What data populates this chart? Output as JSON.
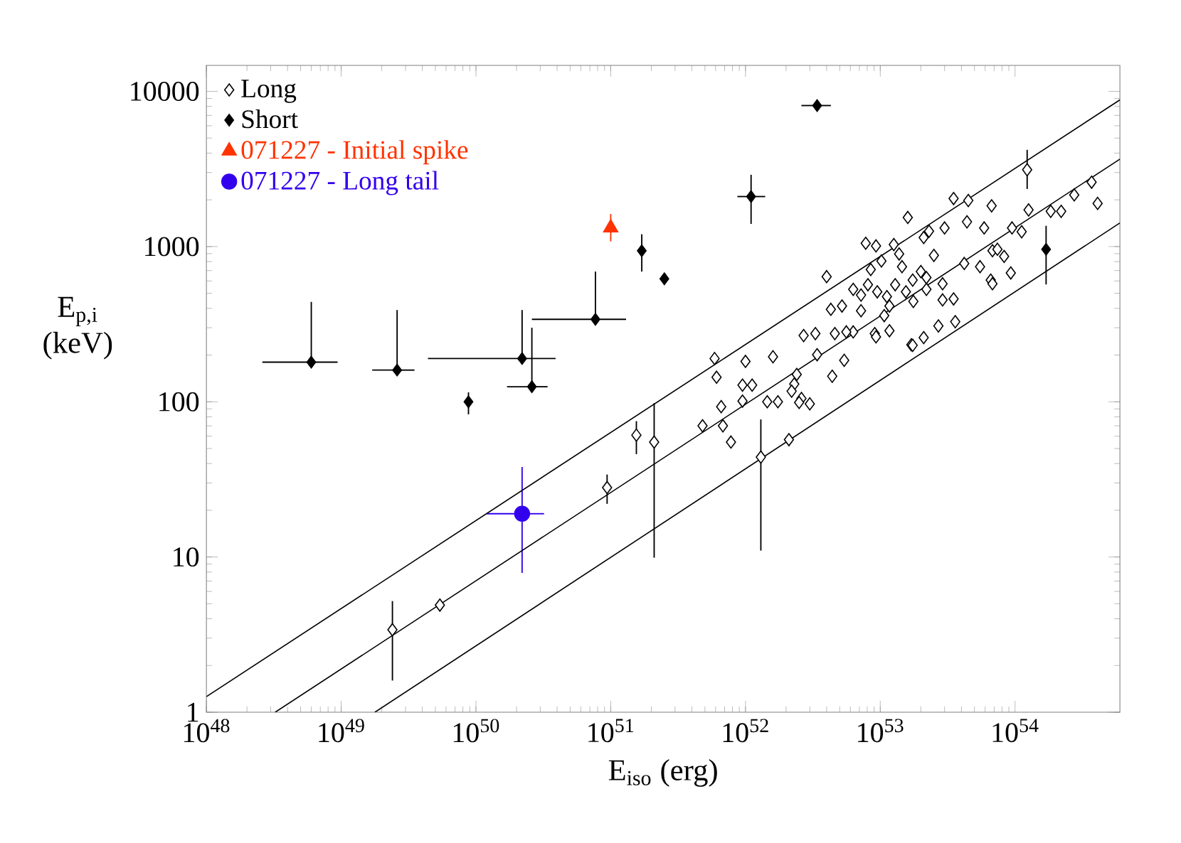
{
  "chart_data": {
    "type": "scatter",
    "xlabel": "E$_{iso}$ (erg)",
    "ylabel": "E$_{p,i}$ (keV)",
    "log": "xy",
    "xlim": [
      1e+48,
      6e+54
    ],
    "ylim": [
      1,
      14700
    ],
    "xticks": [
      {
        "value": 1e+48,
        "label": "10$^{48}$"
      },
      {
        "value": 1e+49,
        "label": "10$^{49}$"
      },
      {
        "value": 1e+50,
        "label": "10$^{50}$"
      },
      {
        "value": 1e+51,
        "label": "10$^{51}$"
      },
      {
        "value": 1e+52,
        "label": "10$^{52}$"
      },
      {
        "value": 1e+53,
        "label": "10$^{53}$"
      },
      {
        "value": 1e+54,
        "label": "10$^{54}$"
      }
    ],
    "yticks": [
      1,
      10,
      100,
      1000,
      10000
    ],
    "legend": "top left",
    "series": [
      {
        "name": "Long",
        "color": "#000000",
        "marker": "diamond",
        "x": [
          2.4e+49,
          5.4e+49,
          9.4e+50,
          1.55e+51,
          2.1e+51,
          5.9e+51,
          6.1e+51,
          1e+52,
          1.6e+52,
          6.6e+51,
          4.8e+51,
          6.8e+51,
          7.8e+51,
          1.3e+52,
          9.5e+51,
          1.12e+52,
          9.5e+51,
          1.45e+52,
          1.74e+52,
          2.1e+52,
          2.3e+52,
          2.2e+52,
          2.4e+52,
          2.6e+52,
          3e+52,
          2.7e+52,
          3.3e+52,
          3.4e+52,
          4.4e+52,
          5.4e+52,
          4.3e+52,
          5.2e+52,
          4.6e+52,
          6.3e+52,
          9.1e+52,
          1.17e+53,
          1.7e+53,
          2.1e+53,
          1.07e+53,
          4e+52,
          7.8e+52,
          9.3e+52,
          1.26e+53,
          1.6e+53,
          1.38e+53,
          8.5e+52,
          1.02e+53,
          1.45e+53,
          6.3e+52,
          7.2e+52,
          8.1e+52,
          9.5e+52,
          1.12e+53,
          1.29e+53,
          1.55e+53,
          1.76e+53,
          1.74e+53,
          2e+53,
          2.2e+53,
          2.2e+53,
          2.9e+53,
          2.9e+53,
          3.5e+53,
          2.5e+53,
          2.3e+53,
          2.1e+53,
          3e+53,
          4.2e+53,
          5.5e+53,
          6.8e+53,
          8.3e+53,
          6.6e+53,
          9.3e+53,
          5.9e+53,
          9.5e+53,
          1.12e+54,
          4.4e+53,
          3.5e+53,
          4.5e+53,
          6.7e+53,
          1.23e+54,
          1.26e+54,
          1.84e+54,
          2.2e+54,
          2.75e+54,
          3.7e+54,
          4.1e+54,
          2.5e+52,
          9.3e+52,
          1.74e+53,
          2.7e+53,
          3.6e+53,
          6.8e+53,
          7.4e+53,
          1.17e+53,
          7.2e+52,
          5.6e+52
        ],
        "values": [
          3.4,
          4.9,
          28,
          61,
          55,
          190,
          144,
          182,
          195,
          93,
          70,
          70,
          55,
          44,
          128,
          128,
          101,
          100,
          100,
          57,
          130,
          117,
          150,
          105,
          97,
          267,
          275,
          201,
          146,
          185,
          394,
          414,
          275,
          282,
          275,
          287,
          233,
          259,
          359,
          640,
          1050,
          1010,
          1030,
          1540,
          896,
          711,
          807,
          742,
          530,
          487,
          568,
          511,
          476,
          568,
          511,
          443,
          608,
          690,
          530,
          631,
          576,
          453,
          460,
          877,
          1255,
          1143,
          1318,
          778,
          742,
          940,
          864,
          608,
          676,
          1318,
          1318,
          1245,
          1443,
          2040,
          1980,
          1830,
          3125,
          1722,
          1686,
          1686,
          2152,
          2600,
          1897,
          99,
          262,
          231,
          308,
          328,
          576,
          961,
          414,
          386,
          282
        ],
        "errors": [
          [
            1.6,
            5.2
          ],
          null,
          [
            22,
            34
          ],
          [
            46,
            75
          ],
          [
            9.9,
            98
          ],
          null,
          null,
          null,
          null,
          null,
          null,
          null,
          null,
          [
            11,
            77
          ],
          null,
          null,
          null,
          null,
          null,
          null,
          null,
          null,
          null,
          null,
          null,
          null,
          null,
          null,
          null,
          null,
          null,
          null,
          null,
          null,
          null,
          null,
          null,
          null,
          null,
          null,
          null,
          null,
          null,
          null,
          null,
          null,
          null,
          null,
          null,
          null,
          null,
          null,
          null,
          null,
          null,
          null,
          null,
          null,
          null,
          null,
          null,
          null,
          null,
          null,
          null,
          null,
          null,
          null,
          null,
          null,
          null,
          null,
          null,
          null,
          null,
          null,
          null,
          null,
          null,
          null,
          [
            2350,
            4200
          ],
          null,
          null,
          null,
          null,
          null,
          null,
          null,
          null,
          null,
          null,
          null,
          null,
          null,
          null,
          null,
          null
        ]
      },
      {
        "name": "Short",
        "color": "#000000",
        "marker": "diamond",
        "x": [
          6e+48,
          2.6e+49,
          8.8e+49,
          2.2e+50,
          2.6e+50,
          7.7e+50,
          1.7e+51,
          2.5e+51,
          1.1e+52,
          3.4e+52,
          1.7e+54
        ],
        "values": [
          180,
          160,
          100,
          190,
          125,
          340,
          940,
          620,
          2100,
          8100,
          960
        ],
        "errors": [
          [
            180,
            440
          ],
          [
            160,
            390
          ],
          [
            83,
            115
          ],
          [
            190,
            390
          ],
          [
            125,
            300
          ],
          [
            340,
            690
          ],
          [
            690,
            1200
          ],
          null,
          [
            1400,
            2900
          ],
          null,
          [
            570,
            1360
          ]
        ],
        "xerrors": [
          [
            2.6e+48,
            9.4e+48
          ],
          [
            1.7e+49,
            3.5e+49
          ],
          null,
          [
            4.4e+49,
            3.9e+50
          ],
          [
            1.7e+50,
            3.4e+50
          ],
          [
            2.6e+50,
            1.3e+51
          ],
          null,
          null,
          [
            8.7e+51,
            1.4e+52
          ],
          [
            2.6e+52,
            4.3e+52
          ],
          null
        ]
      },
      {
        "name": "071227 - Initial spike",
        "color": "#ff3300",
        "marker": "triangle",
        "x": [
          1e+51
        ],
        "values": [
          1320
        ],
        "errors": [
          [
            1080,
            1620
          ]
        ]
      },
      {
        "name": "071227 - Long tail",
        "color": "#3300ee",
        "marker": "circle",
        "x": [
          2.2e+50
        ],
        "values": [
          19
        ],
        "errors": [
          [
            7.9,
            38
          ]
        ],
        "xerrors": [
          [
            1.2e+50,
            3.2e+50
          ]
        ]
      },
      {
        "type": "line",
        "color": "#000000",
        "x": [
          1e+48,
          6e+54
        ],
        "values": [
          1.26,
          8810
        ]
      },
      {
        "type": "line",
        "color": "#000000",
        "x": [
          3.24e+48,
          6e+54
        ],
        "values": [
          1,
          3660
        ]
      },
      {
        "type": "line",
        "color": "#000000",
        "x": [
          1.78e+49,
          6e+54
        ],
        "values": [
          1,
          1420
        ]
      }
    ]
  }
}
